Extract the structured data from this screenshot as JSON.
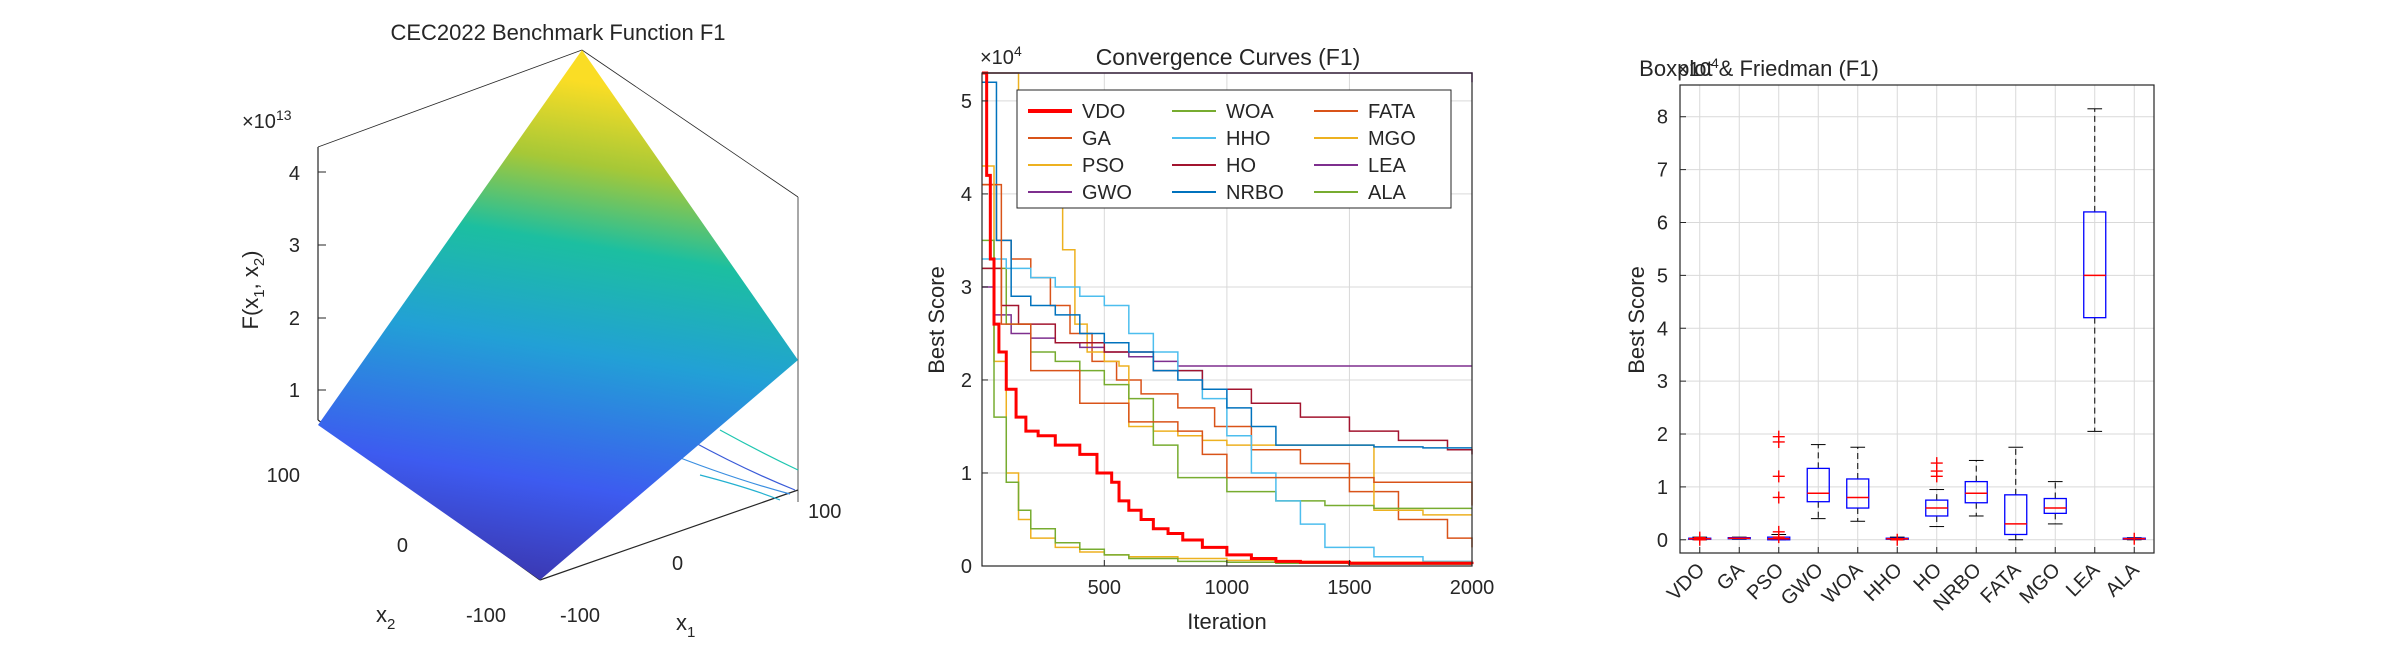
{
  "colors": {
    "axis": "#262626",
    "grid": "#d9d9d9",
    "box": "#0000ff",
    "median": "#ff0000",
    "outlier": "#ff0000",
    "whisker": "#000000",
    "surface_low": "#3b2e9e",
    "surface_mid": "#1fa6c8",
    "surface_high": "#f7e535"
  },
  "chart_data": [
    {
      "type": "surface",
      "title": "CEC2022 Benchmark Function F1",
      "zlabel": "F(x1, x2)",
      "xlabel": "x1",
      "ylabel": "x2",
      "z_exponent": "×10",
      "z_exponent_power": "13",
      "zticks": [
        "1",
        "2",
        "3",
        "4"
      ],
      "x_ticks": [
        "-100",
        "0",
        "100"
      ],
      "y_ticks": [
        "100",
        "0",
        "-100"
      ],
      "zlim": [
        0,
        4.4
      ]
    },
    {
      "type": "line",
      "title": "Convergence Curves (F1)",
      "xlabel": "Iteration",
      "ylabel": "Best Score",
      "y_exponent": "×10",
      "y_exponent_power": "4",
      "xlim": [
        1,
        2000
      ],
      "ylim": [
        0,
        5.3
      ],
      "xticks": [
        500,
        1000,
        1500,
        2000
      ],
      "xtick_labels": [
        "500",
        "1000",
        "1500",
        "2000"
      ],
      "yticks": [
        0,
        1,
        2,
        3,
        4,
        5
      ],
      "ytick_labels": [
        "0",
        "1",
        "2",
        "3",
        "4",
        "5"
      ],
      "series": [
        {
          "name": "VDO",
          "color": "#ff0000",
          "width": 3,
          "x": [
            1,
            20,
            35,
            50,
            70,
            100,
            140,
            180,
            230,
            300,
            350,
            400,
            470,
            530,
            560,
            600,
            650,
            700,
            760,
            820,
            900,
            1000,
            1100,
            1200,
            1300,
            1500,
            2000
          ],
          "y": [
            5.3,
            4.2,
            3.3,
            2.6,
            2.3,
            1.9,
            1.6,
            1.45,
            1.4,
            1.3,
            1.3,
            1.2,
            1.0,
            0.9,
            0.7,
            0.6,
            0.5,
            0.4,
            0.35,
            0.28,
            0.2,
            0.12,
            0.08,
            0.05,
            0.04,
            0.03,
            0.02
          ]
        },
        {
          "name": "GA",
          "color": "#d95319",
          "width": 1.5,
          "x": [
            1,
            60,
            120,
            200,
            280,
            360,
            450,
            550,
            650,
            800,
            950,
            1100,
            1300,
            1500,
            1700,
            1900,
            2000
          ],
          "y": [
            4.1,
            3.5,
            3.3,
            3.1,
            2.8,
            2.5,
            2.2,
            2.0,
            1.85,
            1.7,
            1.5,
            1.25,
            1.1,
            0.8,
            0.5,
            0.3,
            0.2
          ]
        },
        {
          "name": "PSO",
          "color": "#edb120",
          "width": 1.5,
          "x": [
            1,
            150,
            250,
            300,
            330,
            380,
            430,
            500,
            560,
            600,
            700,
            800,
            900,
            1000,
            1200,
            1400,
            1600,
            1800,
            2000
          ],
          "y": [
            5.3,
            5.0,
            4.5,
            4.1,
            3.4,
            2.6,
            2.3,
            2.2,
            2.15,
            1.5,
            1.45,
            1.4,
            1.35,
            1.3,
            1.3,
            1.3,
            0.6,
            0.55,
            0.55
          ]
        },
        {
          "name": "GWO",
          "color": "#7e2f8e",
          "width": 1.5,
          "x": [
            1,
            50,
            120,
            200,
            300,
            400,
            500,
            600,
            700,
            800,
            900,
            1000,
            2000
          ],
          "y": [
            3.0,
            2.7,
            2.5,
            2.45,
            2.4,
            2.35,
            2.3,
            2.25,
            2.2,
            2.15,
            2.15,
            2.15,
            2.15
          ]
        },
        {
          "name": "WOA",
          "color": "#77ac30",
          "width": 1.5,
          "x": [
            1,
            100,
            200,
            300,
            400,
            500,
            600,
            700,
            800,
            1000,
            1200,
            1400,
            1600,
            1800,
            2000
          ],
          "y": [
            3.2,
            2.6,
            2.3,
            2.2,
            2.1,
            1.95,
            1.8,
            1.3,
            0.95,
            0.8,
            0.7,
            0.65,
            0.62,
            0.62,
            0.62
          ]
        },
        {
          "name": "HHO",
          "color": "#4dbeee",
          "width": 1.5,
          "x": [
            1,
            100,
            200,
            300,
            400,
            500,
            600,
            700,
            800,
            900,
            1000,
            1100,
            1200,
            1300,
            1400,
            1600,
            1800,
            2000
          ],
          "y": [
            3.3,
            3.2,
            3.1,
            3.0,
            2.9,
            2.8,
            2.5,
            2.3,
            2.1,
            1.8,
            1.4,
            1.0,
            0.7,
            0.45,
            0.2,
            0.1,
            0.05,
            0.03
          ]
        },
        {
          "name": "HO",
          "color": "#a2142f",
          "width": 1.5,
          "x": [
            1,
            80,
            150,
            300,
            500,
            700,
            900,
            1100,
            1300,
            1500,
            1700,
            1900,
            2000
          ],
          "y": [
            3.2,
            2.8,
            2.6,
            2.4,
            2.3,
            2.1,
            1.9,
            1.75,
            1.6,
            1.45,
            1.35,
            1.25,
            1.2
          ]
        },
        {
          "name": "NRBO",
          "color": "#0072bd",
          "width": 1.5,
          "x": [
            1,
            60,
            120,
            200,
            300,
            400,
            500,
            600,
            700,
            800,
            900,
            1000,
            1100,
            1200,
            1400,
            1600,
            1800,
            2000
          ],
          "y": [
            5.2,
            3.5,
            2.9,
            2.8,
            2.7,
            2.5,
            2.4,
            2.3,
            2.1,
            2.0,
            1.9,
            1.7,
            1.5,
            1.3,
            1.3,
            1.28,
            1.27,
            1.27
          ]
        },
        {
          "name": "FATA",
          "color": "#d95319",
          "width": 1.5,
          "x": [
            1,
            80,
            200,
            400,
            600,
            800,
            900,
            1000,
            1200,
            1400,
            1600,
            1800,
            1950,
            2000
          ],
          "y": [
            4.1,
            2.6,
            2.1,
            1.75,
            1.55,
            1.45,
            1.2,
            0.95,
            0.95,
            0.95,
            0.9,
            0.9,
            0.9,
            0.65
          ]
        },
        {
          "name": "MGO",
          "color": "#edb120",
          "width": 1.5,
          "x": [
            1,
            50,
            100,
            150,
            200,
            300,
            400,
            500,
            600,
            800,
            1000,
            1200,
            1500,
            2000
          ],
          "y": [
            4.3,
            2.2,
            1.0,
            0.5,
            0.3,
            0.2,
            0.15,
            0.12,
            0.1,
            0.08,
            0.06,
            0.05,
            0.04,
            0.03
          ]
        },
        {
          "name": "LEA",
          "color": "#7e2f8e",
          "width": 1.5,
          "x": [
            1,
            1990,
            2000
          ],
          "y": [
            5.3,
            5.3,
            5.2
          ]
        },
        {
          "name": "ALA",
          "color": "#77ac30",
          "width": 1.5,
          "x": [
            1,
            50,
            100,
            150,
            200,
            300,
            400,
            500,
            600,
            800,
            1000,
            1200,
            1500,
            2000
          ],
          "y": [
            3.5,
            1.6,
            0.9,
            0.6,
            0.4,
            0.25,
            0.18,
            0.12,
            0.08,
            0.05,
            0.04,
            0.03,
            0.02,
            0.02
          ]
        }
      ]
    },
    {
      "type": "boxplot",
      "title": "Boxplot & Friedman (F1)",
      "ylabel": "Best Score",
      "y_exponent": "×10",
      "y_exponent_power": "4",
      "ylim": [
        -0.25,
        8.6
      ],
      "yticks": [
        0,
        1,
        2,
        3,
        4,
        5,
        6,
        7,
        8
      ],
      "ytick_labels": [
        "0",
        "1",
        "2",
        "3",
        "4",
        "5",
        "6",
        "7",
        "8"
      ],
      "categories": [
        "VDO",
        "GA",
        "PSO",
        "GWO",
        "WOA",
        "HHO",
        "HO",
        "NRBO",
        "FATA",
        "MGO",
        "LEA",
        "ALA"
      ],
      "boxes": [
        {
          "min": 0.0,
          "q1": 0.01,
          "median": 0.02,
          "q3": 0.03,
          "max": 0.05,
          "outliers": [
            0.0,
            0.04
          ]
        },
        {
          "min": 0.01,
          "q1": 0.02,
          "median": 0.03,
          "q3": 0.04,
          "max": 0.05,
          "outliers": []
        },
        {
          "min": 0.0,
          "q1": 0.0,
          "median": 0.02,
          "q3": 0.05,
          "max": 0.1,
          "outliers": [
            1.95,
            1.85,
            1.2,
            0.8,
            0.15,
            0.05
          ]
        },
        {
          "min": 0.4,
          "q1": 0.72,
          "median": 0.88,
          "q3": 1.35,
          "max": 1.8,
          "outliers": []
        },
        {
          "min": 0.35,
          "q1": 0.6,
          "median": 0.8,
          "q3": 1.15,
          "max": 1.75,
          "outliers": []
        },
        {
          "min": 0.0,
          "q1": 0.01,
          "median": 0.02,
          "q3": 0.03,
          "max": 0.05,
          "outliers": [
            0.0
          ]
        },
        {
          "min": 0.25,
          "q1": 0.45,
          "median": 0.6,
          "q3": 0.75,
          "max": 0.95,
          "outliers": [
            1.45,
            1.3,
            1.2
          ]
        },
        {
          "min": 0.45,
          "q1": 0.7,
          "median": 0.88,
          "q3": 1.1,
          "max": 1.5,
          "outliers": []
        },
        {
          "min": 0.0,
          "q1": 0.1,
          "median": 0.3,
          "q3": 0.85,
          "max": 1.75,
          "outliers": []
        },
        {
          "min": 0.3,
          "q1": 0.5,
          "median": 0.6,
          "q3": 0.78,
          "max": 1.1,
          "outliers": []
        },
        {
          "min": 2.05,
          "q1": 4.2,
          "median": 5.0,
          "q3": 6.2,
          "max": 8.15,
          "outliers": []
        },
        {
          "min": 0.0,
          "q1": 0.01,
          "median": 0.02,
          "q3": 0.03,
          "max": 0.04,
          "outliers": [
            0.02
          ]
        }
      ]
    }
  ]
}
